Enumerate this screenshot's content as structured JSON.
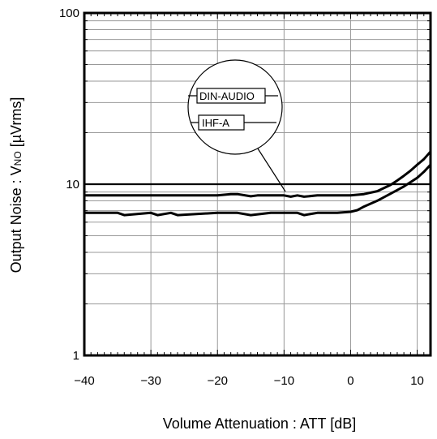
{
  "chart_data": {
    "type": "line",
    "title": "",
    "xlabel": "Volume Attenuation : ATT [dB]",
    "ylabel_main": "Output Noise : V",
    "ylabel_sub": "NO",
    "ylabel_tail": " [µVrms]",
    "xlim": [
      -40,
      12
    ],
    "ylim": [
      1,
      100
    ],
    "yscale": "log",
    "grid": true,
    "x_ticks": [
      -40,
      -30,
      -20,
      -10,
      0,
      10
    ],
    "x_tick_labels": [
      "−40",
      "−30",
      "−20",
      "−10",
      "0",
      "10"
    ],
    "y_ticks": [
      1,
      10,
      100
    ],
    "y_tick_labels": [
      "1",
      "10",
      "100"
    ],
    "legend_placement": "callout",
    "series": [
      {
        "name": "DIN-AUDIO",
        "x": [
          -40,
          -36,
          -30,
          -26,
          -20,
          -18,
          -17,
          -15,
          -14,
          -12,
          -10,
          -9,
          -8,
          -7,
          -5,
          -3,
          0,
          2,
          4,
          6,
          7,
          8,
          9,
          10,
          11,
          12
        ],
        "y": [
          8.6,
          8.6,
          8.6,
          8.6,
          8.6,
          8.75,
          8.75,
          8.5,
          8.6,
          8.6,
          8.6,
          8.45,
          8.6,
          8.45,
          8.6,
          8.6,
          8.6,
          8.75,
          9.1,
          9.9,
          10.5,
          11.2,
          12.0,
          13.0,
          14.0,
          15.5
        ]
      },
      {
        "name": "IHF-A",
        "x": [
          -40,
          -35,
          -34,
          -30,
          -29,
          -27,
          -26,
          -20,
          -17,
          -15,
          -12,
          -8,
          -7,
          -5,
          -2,
          0,
          1,
          2,
          4,
          6,
          8,
          10,
          11,
          12
        ],
        "y": [
          6.8,
          6.8,
          6.6,
          6.8,
          6.6,
          6.8,
          6.6,
          6.8,
          6.8,
          6.6,
          6.8,
          6.8,
          6.6,
          6.8,
          6.8,
          6.9,
          7.05,
          7.4,
          8.0,
          8.8,
          9.7,
          10.9,
          11.8,
          13.0
        ]
      }
    ]
  }
}
